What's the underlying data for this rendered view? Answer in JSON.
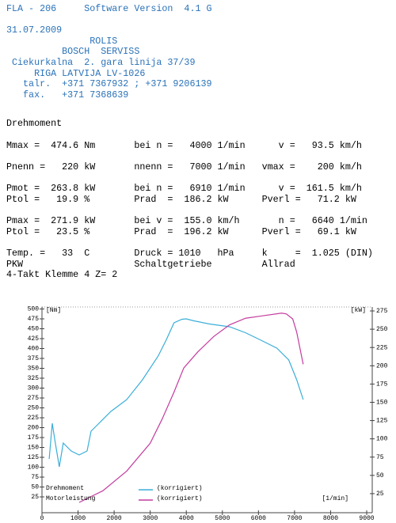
{
  "header": {
    "lines": [
      "FLA - 206     Software Version  4.1 G",
      "",
      "31.07.2009",
      "               ROLIS",
      "          BOSCH  SERVISS",
      " Ciekurkalna  2. gara linija 37/39",
      "     RIGA LATVIJA LV-1026",
      "   talr.  +371 7367932 ; +371 9206139",
      "   fax.   +371 7368639"
    ]
  },
  "results": {
    "title": "Drehmoment",
    "lines": [
      "Mmax =  474.6 Nm       bei n =   4000 1/min      v =   93.5 km/h",
      "",
      "Pnenn =   220 kW       nnenn =   7000 1/min   vmax =    200 km/h",
      "",
      "Pmot =  263.8 kW       bei n =   6910 1/min      v =  161.5 km/h",
      "Ptol =   19.9 %        Prad  =  186.2 kW      Pverl =   71.2 kW",
      "",
      "Pmax =  271.9 kW       bei v =  155.0 km/h       n =   6640 1/min",
      "Ptol =   23.5 %        Prad  =  196.2 kW      Pverl =   69.1 kW",
      "",
      "Temp. =   33  C        Druck = 1010   hPa     k     =  1.025 (DIN)",
      "PKW                    Schaltgetriebe         Allrad",
      "4-Takt Klemme 4 Z= 2"
    ]
  },
  "chart_data": {
    "type": "line",
    "y_unit": "[Nm]",
    "y2_unit": "[kW]",
    "x_unit": "[1/min]",
    "xlim": [
      0,
      9000
    ],
    "xticks": [
      0,
      1000,
      2000,
      3000,
      4000,
      5000,
      6000,
      7000,
      8000,
      9000
    ],
    "ylim": [
      0,
      500
    ],
    "yticks": [
      25,
      50,
      75,
      100,
      125,
      150,
      175,
      200,
      225,
      250,
      275,
      300,
      325,
      350,
      375,
      400,
      425,
      450,
      475,
      500
    ],
    "y2lim": [
      0,
      275
    ],
    "y2ticks": [
      25,
      50,
      75,
      100,
      125,
      150,
      175,
      200,
      225,
      250,
      275
    ],
    "series": [
      {
        "name": "Drehmoment",
        "label": "(korrigiert)",
        "color": "#3aaed8",
        "x": [
          200,
          285,
          370,
          480,
          590,
          810,
          1030,
          1250,
          1360,
          1580,
          1910,
          2350,
          2785,
          3220,
          3440,
          3660,
          3880,
          4000,
          4210,
          4650,
          5200,
          5640,
          6070,
          6510,
          6840,
          7060,
          7240
        ],
        "values": [
          121,
          211,
          161,
          101,
          161,
          141,
          131,
          141,
          191,
          211,
          241,
          271,
          321,
          381,
          421,
          465,
          474,
          475,
          470,
          462,
          455,
          440,
          421,
          401,
          371,
          321,
          271
        ]
      },
      {
        "name": "Motorleistung",
        "label": "(korrigiert)",
        "color": "#c43c9e",
        "axis": "y2",
        "x": [
          1030,
          1690,
          2350,
          3000,
          3330,
          3660,
          3930,
          4320,
          4760,
          5200,
          5640,
          6070,
          6640,
          6770,
          6950,
          7060,
          7240
        ],
        "values": [
          13,
          29,
          56,
          94,
          127,
          164,
          197,
          219,
          240,
          256,
          265,
          268,
          272,
          271,
          264,
          246,
          202
        ]
      }
    ]
  }
}
